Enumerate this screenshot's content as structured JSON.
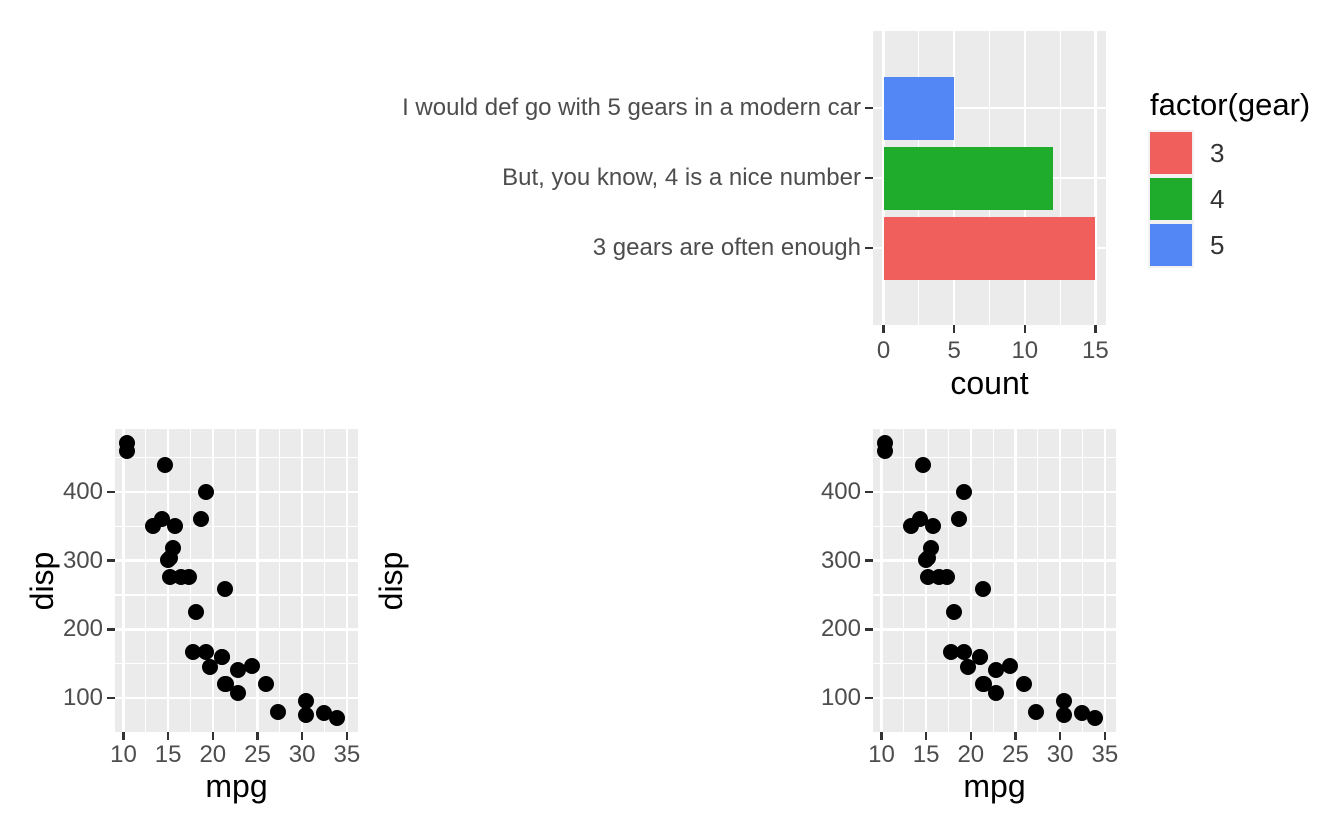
{
  "theme": {
    "figure_background": "#FFFFFF",
    "panel_background": "#EBEBEB",
    "gridline_color": "#FFFFFF",
    "tick_color": "#333333",
    "axis_text_color": "#4D4D4D",
    "axis_title_color": "#000000",
    "legend_key_background": "#F2F2F2",
    "point_color": "#000000"
  },
  "chart_data": [
    {
      "id": "gear-preference-bar-chart",
      "type": "bar",
      "orientation": "horizontal",
      "title": "",
      "xlabel": "count",
      "x_ticks": [
        0,
        5,
        10,
        15
      ],
      "xlim": [
        -0.75,
        15.75
      ],
      "grid": true,
      "categories": [
        "I would def go with 5 gears in a modern car",
        "But, you know, 4 is a nice number",
        "3 gears are often enough"
      ],
      "values": [
        5,
        12,
        15
      ],
      "bar_colors": [
        "#5287F5",
        "#1FAB2C",
        "#F15F5C"
      ],
      "legend": {
        "title": "factor(gear)",
        "position": "right",
        "entries": [
          {
            "label": "3",
            "color": "#F15F5C"
          },
          {
            "label": "4",
            "color": "#1FAB2C"
          },
          {
            "label": "5",
            "color": "#5287F5"
          }
        ]
      }
    },
    {
      "id": "scatter-mpg-disp-left",
      "type": "scatter",
      "xlabel": "mpg",
      "ylabel": "disp",
      "x_ticks": [
        10,
        15,
        20,
        25,
        30,
        35
      ],
      "y_ticks": [
        100,
        200,
        300,
        400
      ],
      "xlim": [
        9.05,
        36.25
      ],
      "ylim": [
        50.5,
        491.7
      ],
      "grid": true,
      "points": [
        [
          21.0,
          160
        ],
        [
          21.0,
          160
        ],
        [
          22.8,
          108
        ],
        [
          21.4,
          258
        ],
        [
          18.7,
          360
        ],
        [
          18.1,
          225
        ],
        [
          14.3,
          360
        ],
        [
          24.4,
          146.7
        ],
        [
          22.8,
          140.8
        ],
        [
          19.2,
          167.6
        ],
        [
          17.8,
          167.6
        ],
        [
          16.4,
          275.8
        ],
        [
          17.3,
          275.8
        ],
        [
          15.2,
          275.8
        ],
        [
          10.4,
          472
        ],
        [
          10.4,
          460
        ],
        [
          14.7,
          440
        ],
        [
          32.4,
          78.7
        ],
        [
          30.4,
          75.7
        ],
        [
          33.9,
          71.1
        ],
        [
          21.5,
          120.1
        ],
        [
          15.5,
          318
        ],
        [
          15.2,
          304
        ],
        [
          13.3,
          350
        ],
        [
          19.2,
          400
        ],
        [
          27.3,
          79
        ],
        [
          26.0,
          120.3
        ],
        [
          30.4,
          95.1
        ],
        [
          15.8,
          351
        ],
        [
          19.7,
          145
        ],
        [
          15.0,
          301
        ],
        [
          21.4,
          121
        ]
      ]
    },
    {
      "id": "scatter-mpg-disp-right",
      "type": "scatter",
      "xlabel": "mpg",
      "ylabel": "disp",
      "x_ticks": [
        10,
        15,
        20,
        25,
        30,
        35
      ],
      "y_ticks": [
        100,
        200,
        300,
        400
      ],
      "xlim": [
        9.05,
        36.25
      ],
      "ylim": [
        50.5,
        491.7
      ],
      "grid": true,
      "points": [
        [
          21.0,
          160
        ],
        [
          21.0,
          160
        ],
        [
          22.8,
          108
        ],
        [
          21.4,
          258
        ],
        [
          18.7,
          360
        ],
        [
          18.1,
          225
        ],
        [
          14.3,
          360
        ],
        [
          24.4,
          146.7
        ],
        [
          22.8,
          140.8
        ],
        [
          19.2,
          167.6
        ],
        [
          17.8,
          167.6
        ],
        [
          16.4,
          275.8
        ],
        [
          17.3,
          275.8
        ],
        [
          15.2,
          275.8
        ],
        [
          10.4,
          472
        ],
        [
          10.4,
          460
        ],
        [
          14.7,
          440
        ],
        [
          32.4,
          78.7
        ],
        [
          30.4,
          75.7
        ],
        [
          33.9,
          71.1
        ],
        [
          21.5,
          120.1
        ],
        [
          15.5,
          318
        ],
        [
          15.2,
          304
        ],
        [
          13.3,
          350
        ],
        [
          19.2,
          400
        ],
        [
          27.3,
          79
        ],
        [
          26.0,
          120.3
        ],
        [
          30.4,
          95.1
        ],
        [
          15.8,
          351
        ],
        [
          19.7,
          145
        ],
        [
          15.0,
          301
        ],
        [
          21.4,
          121
        ]
      ]
    }
  ]
}
